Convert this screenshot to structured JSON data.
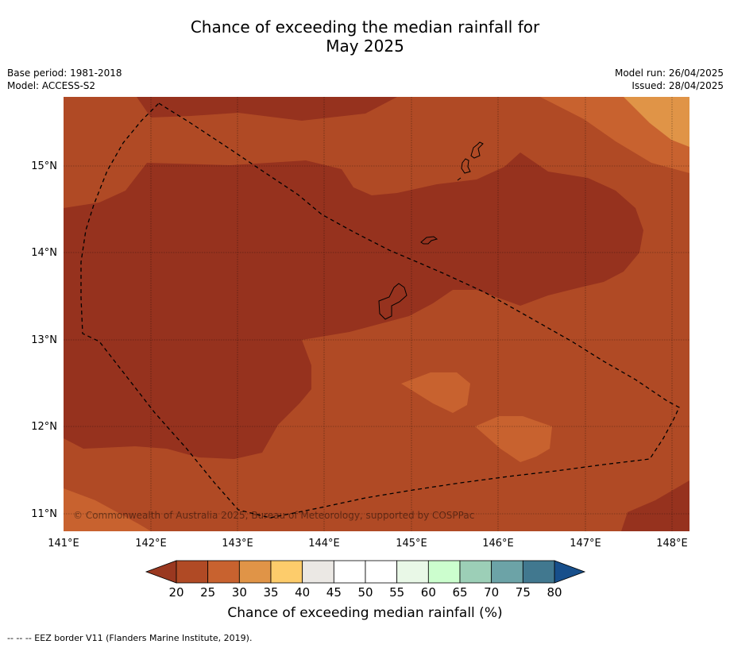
{
  "header": {
    "title_line1": "Chance of exceeding the median rainfall for",
    "title_line2": "May 2025",
    "base_period": "Base period: 1981-2018",
    "model": "Model: ACCESS-S2",
    "model_run": "Model run: 26/04/2025",
    "issued": "Issued: 28/04/2025"
  },
  "map": {
    "lon_labels": [
      "141°E",
      "142°E",
      "143°E",
      "144°E",
      "145°E",
      "146°E",
      "147°E",
      "148°E"
    ],
    "lat_labels": [
      "15°N",
      "14°N",
      "13°N",
      "12°N",
      "11°N"
    ],
    "copyright": "© Commonwealth of Australia 2025, Bureau of Meteorology, supported by COSPPac",
    "land_color": "#000000",
    "border_style": "dashed"
  },
  "colorbar": {
    "ticks": [
      "20",
      "25",
      "30",
      "35",
      "40",
      "45",
      "50",
      "55",
      "60",
      "65",
      "70",
      "75",
      "80"
    ],
    "colors": [
      "#b04a25",
      "#c8622f",
      "#e09447",
      "#fdcc6b",
      "#ebe8e4",
      "#ffffff",
      "#ffffff",
      "#e9f8e7",
      "#ccfece",
      "#9ccfb7",
      "#6ca3a7",
      "#41788f"
    ],
    "under_color": "#9a3820",
    "over_color": "#174f8b",
    "title": "Chance of exceeding median rainfall (%)"
  },
  "footnote": "--  --  -- EEZ border V11 (Flanders Marine Institute, 2019)."
}
